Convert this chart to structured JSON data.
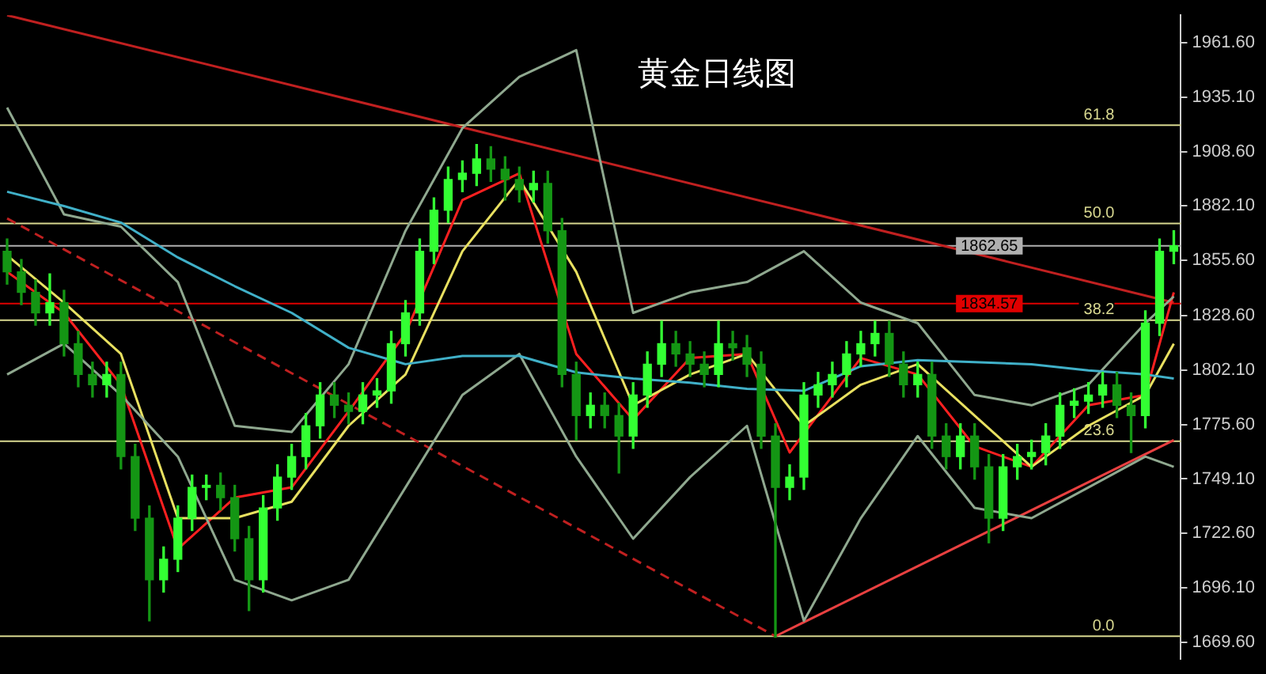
{
  "chart_data": {
    "type": "candlestick",
    "title": "黄金日线图",
    "colors": [
      "#149614",
      "#149614",
      "#149614",
      "#33ff33",
      "#149614",
      "#149614",
      "#149614",
      "#33ff33",
      "#149614",
      "#149614",
      "#149614",
      "#33ff33",
      "#33ff33",
      "#33ff33",
      "#33ff33",
      "#149614",
      "#149614",
      "#149614",
      "#33ff33",
      "#33ff33",
      "#33ff33",
      "#33ff33",
      "#33ff33",
      "#149614",
      "#149614",
      "#33ff33",
      "#33ff33",
      "#33ff33",
      "#33ff33",
      "#33ff33",
      "#33ff33",
      "#33ff33",
      "#33ff33",
      "#33ff33",
      "#149614",
      "#149614",
      "#149614",
      "#33ff33",
      "#149614",
      "#149614",
      "#149614",
      "#33ff33",
      "#149614",
      "#149614",
      "#33ff33",
      "#33ff33",
      "#33ff33",
      "#149614",
      "#149614",
      "#149614",
      "#33ff33",
      "#149614",
      "#149614",
      "#149614",
      "#149614",
      "#33ff33",
      "#33ff33",
      "#33ff33",
      "#33ff33",
      "#33ff33",
      "#33ff33",
      "#33ff33",
      "#149614",
      "#149614",
      "#33ff33",
      "#149614",
      "#149614",
      "#33ff33",
      "#149614",
      "#149614",
      "#33ff33",
      "#33ff33",
      "#33ff33",
      "#33ff33",
      "#33ff33",
      "#33ff33",
      "#33ff33",
      "#33ff33",
      "#149614",
      "#149614",
      "#33ff33",
      "#33ff33",
      "#33ff33"
    ],
    "categories": [
      null,
      null,
      null,
      null,
      null,
      null,
      null,
      null,
      null,
      null,
      null,
      null,
      null,
      null,
      null,
      null,
      null,
      null,
      null,
      null,
      null,
      null,
      null,
      null,
      null,
      null,
      null,
      null,
      null,
      null,
      null,
      null,
      null,
      null,
      null,
      null,
      null,
      null,
      null,
      null,
      null,
      null,
      null,
      null,
      null,
      null,
      null,
      null,
      null,
      null,
      null,
      null,
      null,
      null,
      null,
      null,
      null,
      null,
      null,
      null,
      null,
      null,
      null,
      null,
      null,
      null,
      null,
      null,
      null,
      null,
      null,
      null,
      null,
      null,
      null,
      null,
      null,
      null,
      null,
      null,
      null,
      null,
      null
    ],
    "ohlc": [
      [
        1860,
        1866,
        1844,
        1850
      ],
      [
        1850,
        1856,
        1834,
        1840
      ],
      [
        1840,
        1846,
        1824,
        1830
      ],
      [
        1830,
        1849,
        1824,
        1835
      ],
      [
        1835,
        1841,
        1809,
        1815
      ],
      [
        1815,
        1821,
        1794,
        1800
      ],
      [
        1800,
        1806,
        1789,
        1795
      ],
      [
        1795,
        1806,
        1789,
        1800
      ],
      [
        1800,
        1806,
        1754,
        1760
      ],
      [
        1760,
        1766,
        1724,
        1730
      ],
      [
        1730,
        1736,
        1680,
        1700
      ],
      [
        1700,
        1716,
        1694,
        1710
      ],
      [
        1710,
        1736,
        1704,
        1730
      ],
      [
        1730,
        1751,
        1724,
        1745
      ],
      [
        1745,
        1751,
        1739,
        1746
      ],
      [
        1746,
        1752,
        1734,
        1740
      ],
      [
        1740,
        1746,
        1714,
        1720
      ],
      [
        1720,
        1726,
        1685,
        1700
      ],
      [
        1700,
        1741,
        1694,
        1735
      ],
      [
        1735,
        1756,
        1729,
        1750
      ],
      [
        1750,
        1766,
        1744,
        1760
      ],
      [
        1760,
        1781,
        1754,
        1775
      ],
      [
        1775,
        1796,
        1769,
        1790
      ],
      [
        1790,
        1796,
        1779,
        1785
      ],
      [
        1785,
        1791,
        1776,
        1782
      ],
      [
        1782,
        1796,
        1776,
        1790
      ],
      [
        1790,
        1798,
        1784,
        1792
      ],
      [
        1792,
        1821,
        1786,
        1815
      ],
      [
        1815,
        1836,
        1809,
        1830
      ],
      [
        1830,
        1866,
        1824,
        1860
      ],
      [
        1860,
        1886,
        1854,
        1880
      ],
      [
        1880,
        1901,
        1874,
        1895
      ],
      [
        1895,
        1904,
        1889,
        1898
      ],
      [
        1898,
        1912,
        1892,
        1905
      ],
      [
        1905,
        1911,
        1894,
        1900
      ],
      [
        1900,
        1906,
        1885,
        1895
      ],
      [
        1895,
        1901,
        1884,
        1890
      ],
      [
        1890,
        1899,
        1884,
        1893
      ],
      [
        1893,
        1899,
        1864,
        1870
      ],
      [
        1870,
        1876,
        1794,
        1800
      ],
      [
        1800,
        1806,
        1768,
        1780
      ],
      [
        1780,
        1791,
        1774,
        1785
      ],
      [
        1785,
        1791,
        1774,
        1780
      ],
      [
        1780,
        1786,
        1752,
        1770
      ],
      [
        1770,
        1796,
        1764,
        1790
      ],
      [
        1790,
        1811,
        1784,
        1805
      ],
      [
        1805,
        1826,
        1799,
        1815
      ],
      [
        1815,
        1821,
        1804,
        1810
      ],
      [
        1810,
        1816,
        1799,
        1805
      ],
      [
        1805,
        1811,
        1794,
        1800
      ],
      [
        1800,
        1826,
        1794,
        1815
      ],
      [
        1815,
        1821,
        1807,
        1813
      ],
      [
        1813,
        1819,
        1799,
        1805
      ],
      [
        1805,
        1811,
        1764,
        1770
      ],
      [
        1770,
        1776,
        1672,
        1745
      ],
      [
        1745,
        1756,
        1739,
        1750
      ],
      [
        1750,
        1796,
        1744,
        1790
      ],
      [
        1790,
        1801,
        1784,
        1795
      ],
      [
        1795,
        1806,
        1789,
        1800
      ],
      [
        1800,
        1816,
        1794,
        1810
      ],
      [
        1810,
        1821,
        1804,
        1815
      ],
      [
        1815,
        1826,
        1809,
        1820
      ],
      [
        1820,
        1826,
        1799,
        1805
      ],
      [
        1805,
        1811,
        1789,
        1795
      ],
      [
        1795,
        1806,
        1789,
        1800
      ],
      [
        1800,
        1806,
        1764,
        1770
      ],
      [
        1770,
        1776,
        1754,
        1760
      ],
      [
        1760,
        1776,
        1754,
        1770
      ],
      [
        1770,
        1776,
        1749,
        1755
      ],
      [
        1755,
        1761,
        1718,
        1730
      ],
      [
        1730,
        1761,
        1724,
        1755
      ],
      [
        1755,
        1766,
        1749,
        1760
      ],
      [
        1760,
        1768,
        1754,
        1762
      ],
      [
        1762,
        1776,
        1756,
        1770
      ],
      [
        1770,
        1791,
        1764,
        1785
      ],
      [
        1785,
        1793,
        1779,
        1787
      ],
      [
        1787,
        1796,
        1781,
        1790
      ],
      [
        1790,
        1801,
        1784,
        1795
      ],
      [
        1795,
        1801,
        1779,
        1785
      ],
      [
        1785,
        1791,
        1762,
        1780
      ],
      [
        1780,
        1831,
        1774,
        1825
      ],
      [
        1825,
        1866,
        1819,
        1860
      ],
      [
        1860,
        1870,
        1854,
        1862.65
      ]
    ],
    "series": [
      {
        "type": "line",
        "color": "#40b0c8",
        "values": [
          1889,
          null,
          null,
          null,
          1882,
          null,
          null,
          null,
          1874,
          null,
          null,
          null,
          1857,
          null,
          null,
          null,
          1843,
          null,
          null,
          null,
          1830,
          null,
          null,
          null,
          1813,
          null,
          null,
          null,
          1805,
          null,
          null,
          null,
          1809,
          null,
          null,
          null,
          1809,
          null,
          null,
          null,
          1801,
          null,
          null,
          null,
          1798,
          null,
          null,
          null,
          1796,
          null,
          null,
          null,
          1793,
          null,
          null,
          null,
          1792,
          null,
          null,
          null,
          1804,
          null,
          null,
          null,
          1807,
          null,
          null,
          null,
          1806,
          null,
          null,
          null,
          1805,
          null,
          null,
          null,
          1802,
          null,
          null,
          null,
          1800,
          null,
          1798
        ]
      },
      {
        "type": "line",
        "color": "#8fa88f",
        "values": [
          1930,
          null,
          null,
          null,
          1878,
          null,
          null,
          null,
          1872,
          null,
          null,
          null,
          1845,
          null,
          null,
          null,
          1775,
          null,
          null,
          null,
          1772,
          null,
          null,
          null,
          1805,
          null,
          null,
          null,
          1870,
          null,
          null,
          null,
          1920,
          null,
          null,
          null,
          1945,
          null,
          null,
          null,
          1958,
          null,
          null,
          null,
          1830,
          null,
          null,
          null,
          1840,
          null,
          null,
          null,
          1845,
          null,
          null,
          null,
          1860,
          null,
          null,
          null,
          1835,
          null,
          null,
          null,
          1825,
          null,
          null,
          null,
          1790,
          null,
          null,
          null,
          1785,
          null,
          null,
          null,
          1795,
          null,
          null,
          null,
          1825,
          null,
          1838
        ]
      },
      {
        "type": "line",
        "color": "#8fa88f",
        "values": [
          1800,
          null,
          null,
          null,
          1815,
          null,
          null,
          null,
          1790,
          null,
          null,
          null,
          1760,
          null,
          null,
          null,
          1700,
          null,
          null,
          null,
          1690,
          null,
          null,
          null,
          1700,
          null,
          null,
          null,
          1745,
          null,
          null,
          null,
          1790,
          null,
          null,
          null,
          1810,
          null,
          null,
          null,
          1760,
          null,
          null,
          null,
          1720,
          null,
          null,
          null,
          1750,
          null,
          null,
          null,
          1775,
          null,
          null,
          null,
          1680,
          null,
          null,
          null,
          1730,
          null,
          null,
          null,
          1770,
          null,
          null,
          null,
          1735,
          null,
          null,
          null,
          1730,
          null,
          null,
          null,
          1745,
          null,
          null,
          null,
          1760,
          null,
          1755
        ]
      },
      {
        "type": "line",
        "color": "#e8e060",
        "values": [
          1858,
          null,
          null,
          null,
          1835,
          null,
          null,
          null,
          1810,
          null,
          null,
          null,
          1730,
          null,
          null,
          null,
          1730,
          null,
          null,
          null,
          1738,
          null,
          null,
          null,
          1775,
          null,
          null,
          null,
          1800,
          null,
          null,
          null,
          1860,
          null,
          null,
          null,
          1895,
          null,
          null,
          null,
          1850,
          null,
          null,
          null,
          1785,
          null,
          null,
          null,
          1800,
          null,
          null,
          null,
          1810,
          null,
          null,
          null,
          1775,
          null,
          null,
          null,
          1795,
          null,
          null,
          null,
          1805,
          null,
          null,
          null,
          1780,
          null,
          null,
          null,
          1755,
          null,
          null,
          null,
          1775,
          null,
          null,
          null,
          1790,
          null,
          1815
        ]
      },
      {
        "type": "line",
        "color": "#ff2020",
        "values": [
          1850,
          null,
          null,
          null,
          1830,
          null,
          null,
          null,
          1795,
          null,
          null,
          null,
          1715,
          null,
          null,
          null,
          1740,
          null,
          null,
          null,
          1745,
          null,
          null,
          null,
          1782,
          null,
          null,
          null,
          1820,
          null,
          null,
          null,
          1885,
          null,
          null,
          null,
          1898,
          null,
          null,
          null,
          1810,
          null,
          null,
          null,
          1778,
          null,
          null,
          null,
          1808,
          null,
          null,
          null,
          1810,
          null,
          null,
          1762,
          null,
          null,
          null,
          null,
          1808,
          null,
          null,
          null,
          1800,
          null,
          null,
          null,
          1765,
          null,
          null,
          null,
          1755,
          null,
          null,
          null,
          1785,
          null,
          null,
          null,
          1790,
          null,
          1840
        ]
      },
      {
        "type": "line",
        "color": "#c02020",
        "values": [
          1975,
          null,
          null,
          null,
          null,
          null,
          null,
          null,
          null,
          null,
          null,
          null,
          null,
          null,
          null,
          null,
          null,
          null,
          null,
          null,
          null,
          null,
          null,
          null,
          null,
          null,
          null,
          null,
          null,
          null,
          null,
          null,
          null,
          null,
          null,
          null,
          null,
          null,
          null,
          null,
          null,
          null,
          null,
          null,
          null,
          null,
          null,
          null,
          null,
          null,
          null,
          null,
          null,
          null,
          null,
          null,
          null,
          null,
          null,
          null,
          null,
          null,
          null,
          null,
          null,
          null,
          null,
          null,
          null,
          null,
          null,
          null,
          null,
          null,
          null,
          null,
          null,
          null,
          null,
          null,
          null,
          null,
          1835
        ]
      },
      {
        "type": "line",
        "color": "#c02020",
        "line_style": "dashed",
        "values": [
          1876,
          null,
          null,
          null,
          null,
          null,
          null,
          null,
          null,
          null,
          null,
          null,
          null,
          null,
          null,
          null,
          null,
          null,
          null,
          null,
          null,
          null,
          null,
          null,
          null,
          null,
          null,
          null,
          null,
          null,
          null,
          null,
          null,
          null,
          null,
          null,
          null,
          null,
          null,
          null,
          null,
          null,
          null,
          null,
          null,
          null,
          null,
          null,
          null,
          null,
          null,
          null,
          null,
          null,
          1672.5,
          null,
          null,
          null,
          null,
          null,
          null,
          null,
          null,
          null,
          null,
          null,
          null,
          null,
          null,
          null,
          null,
          null,
          null,
          null,
          null,
          null,
          null,
          null,
          null,
          null,
          null,
          null,
          null
        ]
      },
      {
        "type": "line",
        "color": "#e84040",
        "values": [
          null,
          null,
          null,
          null,
          null,
          null,
          null,
          null,
          null,
          null,
          null,
          null,
          null,
          null,
          null,
          null,
          null,
          null,
          null,
          null,
          null,
          null,
          null,
          null,
          null,
          null,
          null,
          null,
          null,
          null,
          null,
          null,
          null,
          null,
          null,
          null,
          null,
          null,
          null,
          null,
          null,
          null,
          null,
          null,
          null,
          null,
          null,
          null,
          null,
          null,
          null,
          null,
          null,
          null,
          1672.5,
          null,
          null,
          null,
          null,
          null,
          null,
          null,
          null,
          null,
          null,
          null,
          null,
          null,
          null,
          null,
          null,
          null,
          null,
          null,
          null,
          null,
          null,
          null,
          null,
          null,
          null,
          null,
          1768
        ]
      }
    ],
    "ylim": [
      1661.5,
      1975
    ],
    "yticks": [
      {
        "value": 1669.6,
        "label": "1669.60"
      },
      {
        "value": 1696.1,
        "label": "1696.10"
      },
      {
        "value": 1722.6,
        "label": "1722.60"
      },
      {
        "value": 1749.1,
        "label": "1749.10"
      },
      {
        "value": 1775.6,
        "label": "1775.60"
      },
      {
        "value": 1802.1,
        "label": "1802.10"
      },
      {
        "value": 1828.6,
        "label": "1828.60"
      },
      {
        "value": 1855.6,
        "label": "1855.60"
      },
      {
        "value": 1882.1,
        "label": "1882.10"
      },
      {
        "value": 1908.6,
        "label": "1908.60"
      },
      {
        "value": 1935.1,
        "label": "1935.10"
      },
      {
        "value": 1961.6,
        "label": "1961.60"
      }
    ],
    "ref_lines": [
      {
        "axis": "y",
        "value": 1921.4,
        "color": "#d8d890"
      },
      {
        "axis": "y",
        "value": 1873.5,
        "color": "#d8d890"
      },
      {
        "axis": "y",
        "value": 1862.65,
        "label": "1862.65",
        "color": "#b0b0b0"
      },
      {
        "axis": "y",
        "value": 1834.57,
        "label": "1834.57",
        "color": "#e00000"
      },
      {
        "axis": "y",
        "value": 1826.4,
        "color": "#d8d890"
      },
      {
        "axis": "y",
        "value": 1767.5,
        "color": "#d8d890"
      },
      {
        "axis": "y",
        "value": 1672.5,
        "color": "#d8d890"
      }
    ],
    "annotations": [
      {
        "text": "61.8",
        "y": 1921.4
      },
      {
        "text": "50.0",
        "y": 1873.5
      },
      {
        "text": "38.2",
        "y": 1826.4
      },
      {
        "text": "23.6",
        "y": 1767.5
      },
      {
        "text": "0.0",
        "y": 1672.5
      }
    ],
    "tick_labels": "y",
    "grid": false,
    "legend": false
  }
}
